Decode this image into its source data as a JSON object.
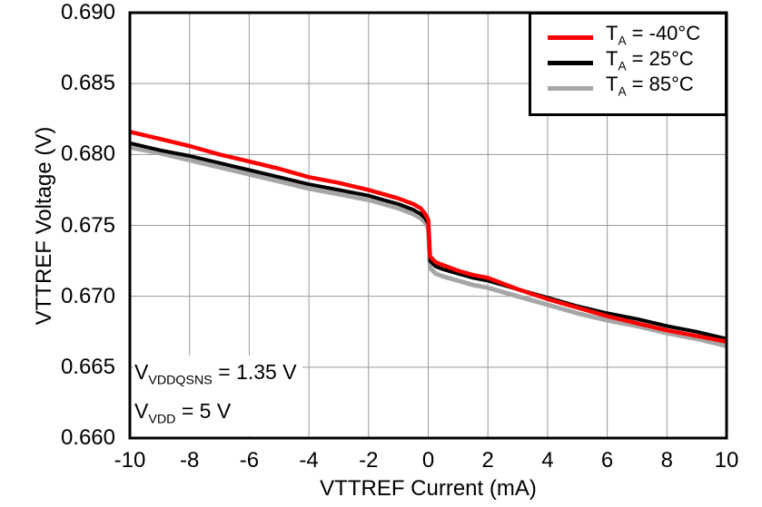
{
  "chart_data": {
    "type": "line",
    "title": "",
    "xlabel": "VTTREF Current (mA)",
    "ylabel": "VTTREF Voltage (V)",
    "xlim": [
      -10,
      10
    ],
    "ylim": [
      0.66,
      0.69
    ],
    "xticks": [
      -10,
      -8,
      -6,
      -4,
      -2,
      0,
      2,
      4,
      6,
      8,
      10
    ],
    "xtick_labels": [
      "-10",
      "-8",
      "-6",
      "-4",
      "-2",
      "0",
      "2",
      "4",
      "6",
      "8",
      "10"
    ],
    "yticks": [
      0.69,
      0.685,
      0.68,
      0.675,
      0.67,
      0.665,
      0.66
    ],
    "ytick_labels": [
      "0.690",
      "0.685",
      "0.680",
      "0.675",
      "0.670",
      "0.665",
      "0.660"
    ],
    "grid": true,
    "grid_color": "#999999",
    "frame_color": "#000000",
    "legend_position": "top-right",
    "series": [
      {
        "name": "TA = -40°C",
        "color": "#ff0000",
        "stroke_width": 4.5,
        "points": [
          [
            -10,
            0.6816
          ],
          [
            -9,
            0.6811
          ],
          [
            -8,
            0.6806
          ],
          [
            -7,
            0.68
          ],
          [
            -6,
            0.6795
          ],
          [
            -5,
            0.679
          ],
          [
            -4,
            0.6784
          ],
          [
            -3,
            0.678
          ],
          [
            -2,
            0.6775
          ],
          [
            -1.5,
            0.6772
          ],
          [
            -1,
            0.6769
          ],
          [
            -0.5,
            0.6765
          ],
          [
            -0.25,
            0.6762
          ],
          [
            -0.1,
            0.6758
          ],
          [
            0,
            0.6754
          ],
          [
            0.06,
            0.6728
          ],
          [
            0.25,
            0.6724
          ],
          [
            0.5,
            0.6722
          ],
          [
            1,
            0.6718
          ],
          [
            1.5,
            0.6715
          ],
          [
            2,
            0.6713
          ],
          [
            3,
            0.6705
          ],
          [
            4,
            0.6698
          ],
          [
            5,
            0.6692
          ],
          [
            6,
            0.6686
          ],
          [
            7,
            0.6681
          ],
          [
            8,
            0.6676
          ],
          [
            9,
            0.6672
          ],
          [
            10,
            0.6668
          ]
        ]
      },
      {
        "name": "TA = 25°C",
        "color": "#000000",
        "stroke_width": 4,
        "points": [
          [
            -10,
            0.6808
          ],
          [
            -9,
            0.6803
          ],
          [
            -8,
            0.6799
          ],
          [
            -7,
            0.6794
          ],
          [
            -6,
            0.6789
          ],
          [
            -5,
            0.6784
          ],
          [
            -4,
            0.6779
          ],
          [
            -3,
            0.6775
          ],
          [
            -2,
            0.6771
          ],
          [
            -1.5,
            0.6768
          ],
          [
            -1,
            0.6765
          ],
          [
            -0.5,
            0.6761
          ],
          [
            -0.25,
            0.6758
          ],
          [
            -0.1,
            0.6755
          ],
          [
            0,
            0.6751
          ],
          [
            0.06,
            0.6725
          ],
          [
            0.25,
            0.6721
          ],
          [
            0.5,
            0.6719
          ],
          [
            1,
            0.6716
          ],
          [
            1.5,
            0.6713
          ],
          [
            2,
            0.6711
          ],
          [
            3,
            0.6705
          ],
          [
            4,
            0.6699
          ],
          [
            5,
            0.6693
          ],
          [
            6,
            0.6688
          ],
          [
            7,
            0.6684
          ],
          [
            8,
            0.6679
          ],
          [
            9,
            0.6675
          ],
          [
            10,
            0.667
          ]
        ]
      },
      {
        "name": "TA = 85°C",
        "color": "#a6a6a6",
        "stroke_width": 5,
        "points": [
          [
            -10,
            0.6805
          ],
          [
            -9,
            0.6801
          ],
          [
            -8,
            0.6796
          ],
          [
            -7,
            0.6791
          ],
          [
            -6,
            0.6786
          ],
          [
            -5,
            0.6781
          ],
          [
            -4,
            0.6776
          ],
          [
            -3,
            0.6772
          ],
          [
            -2,
            0.6768
          ],
          [
            -1.5,
            0.6765
          ],
          [
            -1,
            0.6762
          ],
          [
            -0.5,
            0.6758
          ],
          [
            -0.25,
            0.6755
          ],
          [
            -0.1,
            0.6752
          ],
          [
            0,
            0.6748
          ],
          [
            0.06,
            0.672
          ],
          [
            0.25,
            0.6716
          ],
          [
            0.5,
            0.6714
          ],
          [
            1,
            0.6711
          ],
          [
            1.5,
            0.6708
          ],
          [
            2,
            0.6706
          ],
          [
            3,
            0.67
          ],
          [
            4,
            0.6694
          ],
          [
            5,
            0.6688
          ],
          [
            6,
            0.6683
          ],
          [
            7,
            0.6679
          ],
          [
            8,
            0.6674
          ],
          [
            9,
            0.667
          ],
          [
            10,
            0.6665
          ]
        ]
      }
    ],
    "conditions": [
      "VVDDQSNS = 1.35 V",
      "VVDD = 5 V"
    ]
  },
  "legend": {
    "items": [
      {
        "prefix": "T",
        "sub": "A",
        "suffix": " = -40°C",
        "color": "#ff0000"
      },
      {
        "prefix": "T",
        "sub": "A",
        "suffix": " = 25°C",
        "color": "#000000"
      },
      {
        "prefix": "T",
        "sub": "A",
        "suffix": " = 85°C",
        "color": "#a6a6a6"
      }
    ]
  },
  "annotations": {
    "line1": {
      "prefix": "V",
      "sub": "VDDQSNS",
      "suffix": " = 1.35 V"
    },
    "line2": {
      "prefix": "V",
      "sub": "VDD",
      "suffix": " = 5 V"
    }
  }
}
